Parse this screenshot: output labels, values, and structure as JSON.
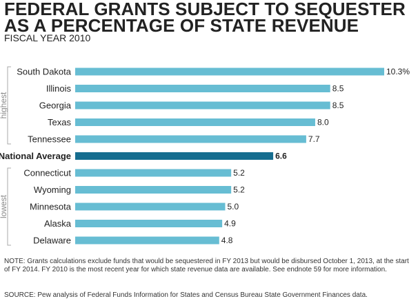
{
  "title": {
    "line1": "FEDERAL GRANTS SUBJECT TO SEQUESTER",
    "line2": "AS A PERCENTAGE OF STATE REVENUE",
    "subtitle": "FISCAL YEAR 2010"
  },
  "chart_data": {
    "type": "bar",
    "orientation": "horizontal",
    "categories": [
      "South Dakota",
      "Illinois",
      "Georgia",
      "Texas",
      "Tennessee",
      "National Average",
      "Connecticut",
      "Wyoming",
      "Minnesota",
      "Alaska",
      "Delaware"
    ],
    "values": [
      10.3,
      8.5,
      8.5,
      8.0,
      7.7,
      6.6,
      5.2,
      5.2,
      5.0,
      4.9,
      4.8
    ],
    "value_labels": [
      "10.3%",
      "8.5",
      "8.5",
      "8.0",
      "7.7",
      "6.6",
      "5.2",
      "5.2",
      "5.0",
      "4.9",
      "4.8"
    ],
    "groups": [
      {
        "label": "highest",
        "categories": [
          "South Dakota",
          "Illinois",
          "Georgia",
          "Texas",
          "Tennessee"
        ]
      },
      {
        "label": "lowest",
        "categories": [
          "Connecticut",
          "Wyoming",
          "Minnesota",
          "Alaska",
          "Delaware"
        ]
      }
    ],
    "highlight": "National Average",
    "xlim": [
      0,
      10.3
    ],
    "grid": false,
    "legend": "none",
    "colors": {
      "bar": "#67bdd3",
      "highlight": "#166d8f",
      "bracket": "#a9a9a9",
      "group_label": "#8a8a8a"
    }
  },
  "note": "NOTE: Grants calculations exclude funds that would be sequestered in FY 2013 but would be disbursed October 1, 2013, at the start of FY 2014. FY 2010 is the most recent year for which state revenue data are available. See endnote 59 for more information.",
  "source": "SOURCE: Pew analysis of Federal Funds Information for States and Census Bureau State Government Finances data."
}
